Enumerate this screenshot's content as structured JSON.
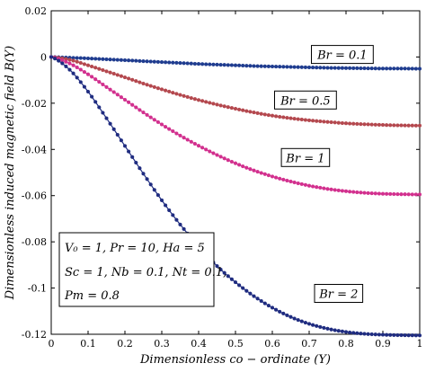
{
  "chart_data": {
    "type": "line",
    "xlabel": "Dimensionless  co − ordinate (Y)",
    "ylabel": "Dimensionless  induced magnetic  field B(Y)",
    "xlim": [
      0,
      1
    ],
    "ylim": [
      -0.12,
      0.02
    ],
    "x_ticks": [
      "0",
      "0.1",
      "0.2",
      "0.3",
      "0.4",
      "0.5",
      "0.6",
      "0.7",
      "0.8",
      "0.9",
      "1"
    ],
    "y_ticks": [
      "0.02",
      "0",
      "-0.02",
      "-0.04",
      "-0.06",
      "-0.08",
      "-0.1",
      "-0.12"
    ],
    "x": [
      0,
      0.05,
      0.1,
      0.15,
      0.2,
      0.25,
      0.3,
      0.35,
      0.4,
      0.45,
      0.5,
      0.55,
      0.6,
      0.65,
      0.7,
      0.75,
      0.8,
      0.85,
      0.9,
      0.95,
      1
    ],
    "series": [
      {
        "name": "Br = 0.1",
        "color": "#1f3c8f",
        "values": [
          0,
          -0.0003,
          -0.0006,
          -0.001,
          -0.0014,
          -0.0018,
          -0.0022,
          -0.0026,
          -0.003,
          -0.0033,
          -0.0036,
          -0.0039,
          -0.0041,
          -0.0043,
          -0.0045,
          -0.0047,
          -0.0048,
          -0.0049,
          -0.005,
          -0.005,
          -0.0051
        ]
      },
      {
        "name": "Br = 0.5",
        "color": "#b4484e",
        "values": [
          0,
          -0.0012,
          -0.0036,
          -0.0062,
          -0.0088,
          -0.0115,
          -0.014,
          -0.0164,
          -0.0186,
          -0.0206,
          -0.0224,
          -0.024,
          -0.0254,
          -0.0265,
          -0.0274,
          -0.0281,
          -0.0287,
          -0.0291,
          -0.0294,
          -0.0296,
          -0.0297
        ]
      },
      {
        "name": "Br = 1",
        "color": "#d2308e",
        "values": [
          0,
          -0.0028,
          -0.0075,
          -0.013,
          -0.0185,
          -0.024,
          -0.0292,
          -0.034,
          -0.0384,
          -0.0424,
          -0.046,
          -0.0491,
          -0.0517,
          -0.0539,
          -0.0557,
          -0.0571,
          -0.0581,
          -0.0588,
          -0.0592,
          -0.0594,
          -0.0595
        ]
      },
      {
        "name": "Br = 2",
        "color": "#1f2c80",
        "values": [
          0,
          -0.0055,
          -0.015,
          -0.0265,
          -0.0385,
          -0.0505,
          -0.062,
          -0.0725,
          -0.082,
          -0.0905,
          -0.0975,
          -0.1035,
          -0.1085,
          -0.1125,
          -0.1155,
          -0.1176,
          -0.119,
          -0.1198,
          -0.1202,
          -0.1204,
          -0.1205
        ]
      }
    ],
    "annotations": [
      {
        "text": "Br = 0.1",
        "x": 0.79,
        "y": 0.0011
      },
      {
        "text": "Br = 0.5",
        "x": 0.69,
        "y": -0.0186
      },
      {
        "text": "Br = 1",
        "x": 0.69,
        "y": -0.0435
      },
      {
        "text": "Br = 2",
        "x": 0.78,
        "y": -0.1023
      }
    ],
    "parameters": {
      "lines": [
        "V₀ = 1, Pr = 10, Ha = 5",
        "Sc = 1, Nb = 0.1, Nt = 0.1,",
        "Pm = 0.8"
      ]
    },
    "grid": false
  }
}
